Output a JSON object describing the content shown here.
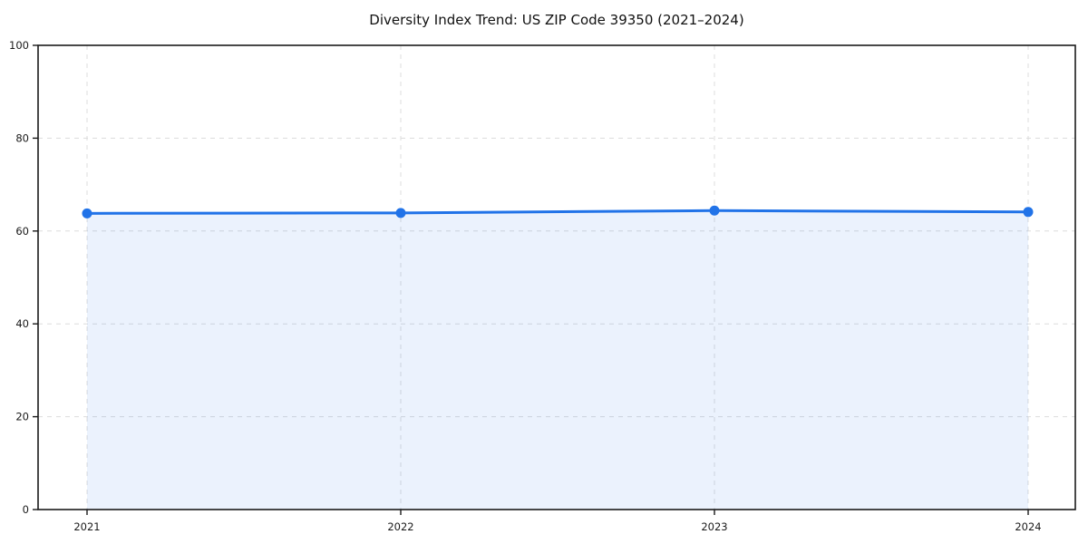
{
  "chart_data": {
    "type": "line",
    "title": "Diversity Index Trend: US ZIP Code 39350 (2021–2024)",
    "categories": [
      "2021",
      "2022",
      "2023",
      "2024"
    ],
    "series": [
      {
        "name": "Diversity Index",
        "values": [
          63.8,
          63.9,
          64.4,
          64.1
        ]
      }
    ],
    "xlabel": "",
    "ylabel": "",
    "ylim": [
      0,
      100
    ],
    "yticks": [
      0,
      20,
      40,
      60,
      80,
      100
    ],
    "grid": "dashed, both axes",
    "legend_position": "none",
    "area_fill": true,
    "colors": {
      "line": "#2173e8",
      "marker": "#2173e8",
      "area": "#2173e8",
      "area_opacity": "0.09",
      "grid": "#d9d9d9",
      "axis": "#1a1a1a",
      "text": "#1a1a1a",
      "background": "#ffffff"
    }
  }
}
